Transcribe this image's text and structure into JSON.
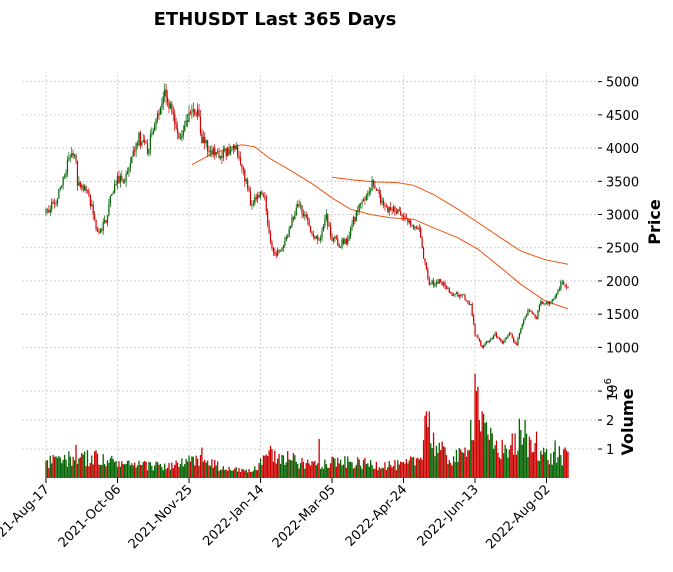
{
  "chart_data": {
    "type": "candlestick",
    "title": "ETHUSDT Last 365 Days",
    "ylabel": "Price",
    "ylabel_volume": "Volume",
    "volume_exponent": "10",
    "volume_exponent_power": "6",
    "price_ylim": [
      780,
      5100
    ],
    "volume_ylim": [
      0,
      3.9
    ],
    "x_start": "2021-08-17",
    "x_end": "2022-08-17",
    "x_tick_labels": [
      "2021-Aug-17",
      "2021-Oct-06",
      "2021-Nov-25",
      "2022-Jan-14",
      "2022-Mar-05",
      "2022-Apr-24",
      "2022-Jun-13",
      "2022-Aug-02"
    ],
    "price_tick_labels": [
      "1000",
      "1500",
      "2000",
      "2500",
      "3000",
      "3500",
      "4000",
      "4500",
      "5000"
    ],
    "volume_tick_labels": [
      "1",
      "2",
      "3"
    ],
    "up_color": "#006400",
    "down_color": "#cc0000",
    "ma_color": "#ee5511",
    "grid": true,
    "price_anchors": [
      [
        "2021-08-17",
        3020
      ],
      [
        "2021-08-25",
        3250
      ],
      [
        "2021-09-03",
        3900
      ],
      [
        "2021-09-06",
        3950
      ],
      [
        "2021-09-08",
        3500
      ],
      [
        "2021-09-14",
        3400
      ],
      [
        "2021-09-20",
        2950
      ],
      [
        "2021-09-22",
        2700
      ],
      [
        "2021-09-28",
        2900
      ],
      [
        "2021-10-01",
        3300
      ],
      [
        "2021-10-06",
        3550
      ],
      [
        "2021-10-10",
        3500
      ],
      [
        "2021-10-15",
        3850
      ],
      [
        "2021-10-21",
        4150
      ],
      [
        "2021-10-27",
        4000
      ],
      [
        "2021-11-01",
        4300
      ],
      [
        "2021-11-08",
        4800
      ],
      [
        "2021-11-12",
        4650
      ],
      [
        "2021-11-18",
        4100
      ],
      [
        "2021-11-23",
        4350
      ],
      [
        "2021-11-25",
        4450
      ],
      [
        "2021-12-01",
        4600
      ],
      [
        "2021-12-04",
        4100
      ],
      [
        "2021-12-10",
        3950
      ],
      [
        "2021-12-15",
        3850
      ],
      [
        "2021-12-20",
        3950
      ],
      [
        "2021-12-27",
        4050
      ],
      [
        "2022-01-01",
        3750
      ],
      [
        "2022-01-07",
        3200
      ],
      [
        "2022-01-14",
        3300
      ],
      [
        "2022-01-17",
        3200
      ],
      [
        "2022-01-21",
        2550
      ],
      [
        "2022-01-24",
        2400
      ],
      [
        "2022-01-28",
        2500
      ],
      [
        "2022-02-02",
        2700
      ],
      [
        "2022-02-07",
        3050
      ],
      [
        "2022-02-10",
        3200
      ],
      [
        "2022-02-14",
        2950
      ],
      [
        "2022-02-20",
        2700
      ],
      [
        "2022-02-24",
        2600
      ],
      [
        "2022-03-01",
        2950
      ],
      [
        "2022-03-05",
        2650
      ],
      [
        "2022-03-10",
        2550
      ],
      [
        "2022-03-15",
        2600
      ],
      [
        "2022-03-20",
        2900
      ],
      [
        "2022-03-27",
        3250
      ],
      [
        "2022-04-02",
        3450
      ],
      [
        "2022-04-08",
        3250
      ],
      [
        "2022-04-13",
        3050
      ],
      [
        "2022-04-20",
        3050
      ],
      [
        "2022-04-24",
        2950
      ],
      [
        "2022-04-30",
        2800
      ],
      [
        "2022-05-05",
        2750
      ],
      [
        "2022-05-09",
        2250
      ],
      [
        "2022-05-12",
        1950
      ],
      [
        "2022-05-20",
        2000
      ],
      [
        "2022-05-27",
        1800
      ],
      [
        "2022-06-03",
        1800
      ],
      [
        "2022-06-10",
        1650
      ],
      [
        "2022-06-13",
        1200
      ],
      [
        "2022-06-18",
        1000
      ],
      [
        "2022-06-22",
        1100
      ],
      [
        "2022-06-27",
        1200
      ],
      [
        "2022-07-02",
        1050
      ],
      [
        "2022-07-07",
        1200
      ],
      [
        "2022-07-12",
        1050
      ],
      [
        "2022-07-17",
        1400
      ],
      [
        "2022-07-20",
        1550
      ],
      [
        "2022-07-26",
        1450
      ],
      [
        "2022-07-29",
        1700
      ],
      [
        "2022-08-02",
        1650
      ],
      [
        "2022-08-07",
        1750
      ],
      [
        "2022-08-13",
        2000
      ],
      [
        "2022-08-17",
        1870
      ]
    ],
    "ma_long": [
      [
        "2021-11-27",
        3750
      ],
      [
        "2021-12-10",
        3900
      ],
      [
        "2021-12-22",
        4000
      ],
      [
        "2022-01-01",
        4050
      ],
      [
        "2022-01-10",
        4020
      ],
      [
        "2022-01-20",
        3850
      ],
      [
        "2022-02-05",
        3650
      ],
      [
        "2022-02-20",
        3450
      ],
      [
        "2022-03-05",
        3250
      ],
      [
        "2022-03-18",
        3080
      ],
      [
        "2022-04-01",
        3000
      ],
      [
        "2022-04-15",
        2950
      ],
      [
        "2022-05-01",
        2930
      ],
      [
        "2022-05-15",
        2800
      ],
      [
        "2022-06-01",
        2650
      ],
      [
        "2022-06-15",
        2480
      ],
      [
        "2022-07-01",
        2200
      ],
      [
        "2022-07-15",
        1950
      ],
      [
        "2022-08-01",
        1700
      ],
      [
        "2022-08-17",
        1580
      ]
    ],
    "ma_short": [
      [
        "2022-03-05",
        3560
      ],
      [
        "2022-03-20",
        3520
      ],
      [
        "2022-04-05",
        3490
      ],
      [
        "2022-04-20",
        3480
      ],
      [
        "2022-05-01",
        3440
      ],
      [
        "2022-05-15",
        3300
      ],
      [
        "2022-06-01",
        3080
      ],
      [
        "2022-06-15",
        2880
      ],
      [
        "2022-07-01",
        2650
      ],
      [
        "2022-07-15",
        2450
      ],
      [
        "2022-08-01",
        2320
      ],
      [
        "2022-08-17",
        2250
      ]
    ],
    "volume_anchors": [
      [
        "2021-08-17",
        0.55
      ],
      [
        "2021-09-07",
        0.75
      ],
      [
        "2021-09-22",
        0.7
      ],
      [
        "2021-10-15",
        0.45
      ],
      [
        "2021-11-15",
        0.45
      ],
      [
        "2021-12-04",
        0.7
      ],
      [
        "2021-12-20",
        0.3
      ],
      [
        "2022-01-10",
        0.3
      ],
      [
        "2022-01-22",
        0.9
      ],
      [
        "2022-02-15",
        0.5
      ],
      [
        "2022-03-05",
        0.6
      ],
      [
        "2022-04-01",
        0.5
      ],
      [
        "2022-04-24",
        0.45
      ],
      [
        "2022-05-05",
        0.7
      ],
      [
        "2022-05-10",
        1.8
      ],
      [
        "2022-05-13",
        1.4
      ],
      [
        "2022-05-25",
        0.7
      ],
      [
        "2022-06-05",
        0.8
      ],
      [
        "2022-06-13",
        2.4
      ],
      [
        "2022-06-15",
        2.6
      ],
      [
        "2022-06-20",
        1.5
      ],
      [
        "2022-07-01",
        1.0
      ],
      [
        "2022-07-15",
        1.3
      ],
      [
        "2022-07-25",
        1.1
      ],
      [
        "2022-08-05",
        0.7
      ],
      [
        "2022-08-17",
        0.8
      ]
    ],
    "volume_spikes": [
      [
        "2021-09-07",
        1.15
      ],
      [
        "2021-09-21",
        0.95
      ],
      [
        "2021-12-04",
        1.05
      ],
      [
        "2022-01-22",
        1.0
      ],
      [
        "2022-01-24",
        0.95
      ],
      [
        "2022-02-24",
        1.35
      ],
      [
        "2022-05-09",
        2.15
      ],
      [
        "2022-05-10",
        2.3
      ],
      [
        "2022-05-12",
        2.3
      ],
      [
        "2022-06-13",
        3.6
      ],
      [
        "2022-06-14",
        3.0
      ],
      [
        "2022-06-15",
        3.15
      ],
      [
        "2022-06-16",
        2.0
      ],
      [
        "2022-06-18",
        2.3
      ],
      [
        "2022-06-20",
        1.9
      ],
      [
        "2022-07-14",
        2.05
      ],
      [
        "2022-07-18",
        2.0
      ],
      [
        "2022-07-26",
        1.6
      ],
      [
        "2022-08-08",
        1.3
      ],
      [
        "2022-08-11",
        1.1
      ]
    ]
  }
}
